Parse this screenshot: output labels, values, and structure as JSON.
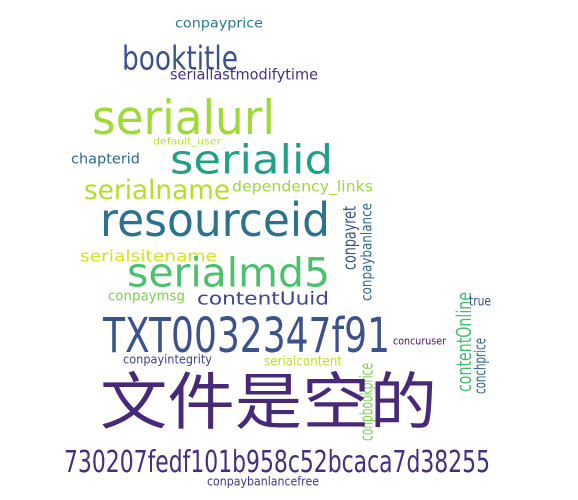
{
  "word_cloud": {
    "words": [
      {
        "text": "conpayprice",
        "color": "#2a788e"
      },
      {
        "text": "booktitle",
        "color": "#3b528b"
      },
      {
        "text": "seriallastmodifytime",
        "color": "#46327e"
      },
      {
        "text": "serialurl",
        "color": "#a0da39"
      },
      {
        "text": "default_user",
        "color": "#bddf26"
      },
      {
        "text": "serialid",
        "color": "#1fa187"
      },
      {
        "text": "chapterid",
        "color": "#31688e"
      },
      {
        "text": "serialname",
        "color": "#b5de2b"
      },
      {
        "text": "dependency_links",
        "color": "#9bd93c"
      },
      {
        "text": "resourceid",
        "color": "#2c728e"
      },
      {
        "text": "conpayret",
        "color": "#3b528b"
      },
      {
        "text": "conpaybanlance",
        "color": "#31688e"
      },
      {
        "text": "serialsitename",
        "color": "#d8e219"
      },
      {
        "text": "serialmd5",
        "color": "#4ac16d"
      },
      {
        "text": "conpaymsg",
        "color": "#7ad151"
      },
      {
        "text": "contentUuid",
        "color": "#404688"
      },
      {
        "text": "contentOnline",
        "color": "#44bf70"
      },
      {
        "text": "true",
        "color": "#3e4a89"
      },
      {
        "text": "TXT0032347f91",
        "color": "#3b528b"
      },
      {
        "text": "concuruser",
        "color": "#471365"
      },
      {
        "text": "conpayintegrity",
        "color": "#414487"
      },
      {
        "text": "serialcontent",
        "color": "#c2df23"
      },
      {
        "text": "conchprice",
        "color": "#32648e"
      },
      {
        "text": "conpbookprice",
        "color": "#7fd34e"
      },
      {
        "text": "文件是空的",
        "color": "#482878"
      },
      {
        "text": "730207fedf101b958c52bcaca7d38255",
        "color": "#472d7b"
      },
      {
        "text": "conpaybanlancefree",
        "color": "#443983"
      }
    ]
  }
}
